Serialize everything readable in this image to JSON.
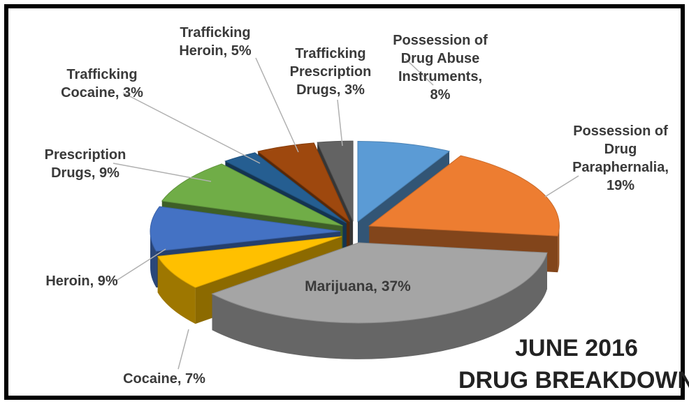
{
  "chart_data": {
    "type": "pie",
    "title": [
      "JUNE 2016",
      "DRUG BREAKDOWN"
    ],
    "slices": [
      {
        "label": "Possession of Drug Abuse Instruments, 8%",
        "value": 8,
        "color": "#5b9bd5"
      },
      {
        "label": "Possession of Drug Paraphernalia, 19%",
        "value": 19,
        "color": "#ed7d31"
      },
      {
        "label": "Marijuana, 37%",
        "value": 37,
        "color": "#a5a5a5"
      },
      {
        "label": "Cocaine, 7%",
        "value": 7,
        "color": "#ffc000"
      },
      {
        "label": "Heroin, 9%",
        "value": 9,
        "color": "#4472c4"
      },
      {
        "label": "Prescription Drugs, 9%",
        "value": 9,
        "color": "#70ad47"
      },
      {
        "label": "Trafficking Cocaine, 3%",
        "value": 3,
        "color": "#255e91"
      },
      {
        "label": "Trafficking Heroin, 5%",
        "value": 5,
        "color": "#9e480e"
      },
      {
        "label": "Trafficking Prescription Drugs, 3%",
        "value": 3,
        "color": "#636363"
      }
    ],
    "label_lines": [
      [
        "Possession of",
        "Drug Abuse",
        "Instruments,",
        "8%"
      ],
      [
        "Possession of",
        "Drug",
        "Paraphernalia,",
        "19%"
      ],
      [
        "Marijuana, 37%"
      ],
      [
        "Cocaine, 7%"
      ],
      [
        "Heroin, 9%"
      ],
      [
        "Prescription",
        "Drugs, 9%"
      ],
      [
        "Trafficking",
        "Cocaine, 3%"
      ],
      [
        "Trafficking",
        "Heroin, 5%"
      ],
      [
        "Trafficking",
        "Prescription",
        "Drugs, 3%"
      ]
    ]
  }
}
